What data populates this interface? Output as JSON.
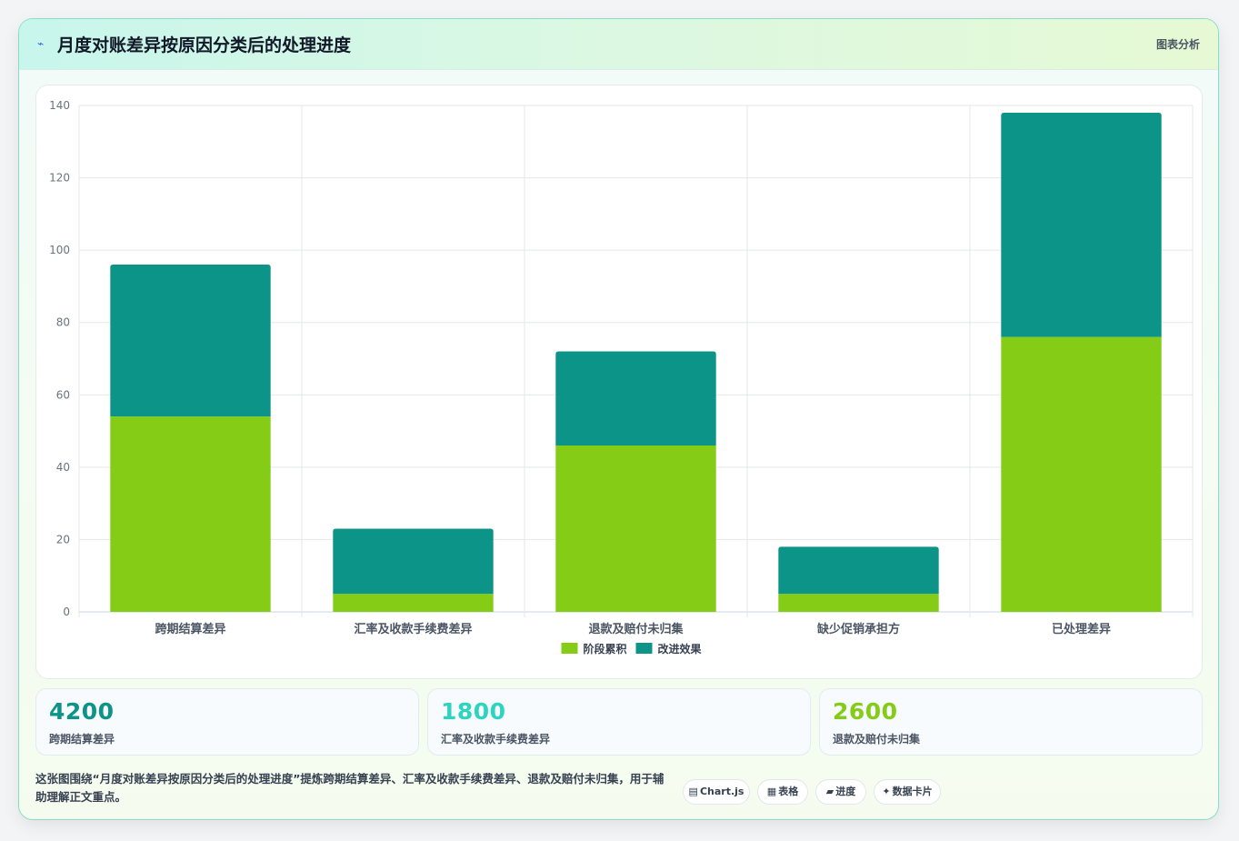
{
  "header": {
    "icon": "chart-spark-icon",
    "title": "月度对账差异按原因分类后的处理进度",
    "tag": "图表分析"
  },
  "chart_data": {
    "type": "bar",
    "stacked": true,
    "categories": [
      "跨期结算差异",
      "汇率及收款手续费差异",
      "退款及赔付未归集",
      "缺少促销承担方",
      "已处理差异"
    ],
    "series": [
      {
        "name": "阶段累积",
        "color": "#84cc16",
        "values": [
          54,
          5,
          46,
          5,
          76
        ]
      },
      {
        "name": "改进效果",
        "color": "#0d9488",
        "values": [
          42,
          18,
          26,
          13,
          62
        ]
      }
    ],
    "ylim": [
      0,
      140
    ],
    "yticks": [
      0,
      20,
      40,
      60,
      80,
      100,
      120,
      140
    ],
    "grid": true,
    "legend": "bottom"
  },
  "stats": [
    {
      "value": "4200",
      "label": "跨期结算差异",
      "color": "#0d9488"
    },
    {
      "value": "1800",
      "label": "汇率及收款手续费差异",
      "color": "#2dd4bf"
    },
    {
      "value": "2600",
      "label": "退款及赔付未归集",
      "color": "#84cc16"
    }
  ],
  "footer": {
    "description": "这张图围绕“月度对账差异按原因分类后的处理进度”提炼跨期结算差异、汇率及收款手续费差异、退款及赔付未归集，用于辅助理解正文重点。",
    "chips": [
      {
        "icon": "▤",
        "label": "Chart.js"
      },
      {
        "icon": "▦",
        "label": "表格"
      },
      {
        "icon": "▰",
        "label": "进度"
      },
      {
        "icon": "✦",
        "label": "数据卡片"
      }
    ]
  }
}
